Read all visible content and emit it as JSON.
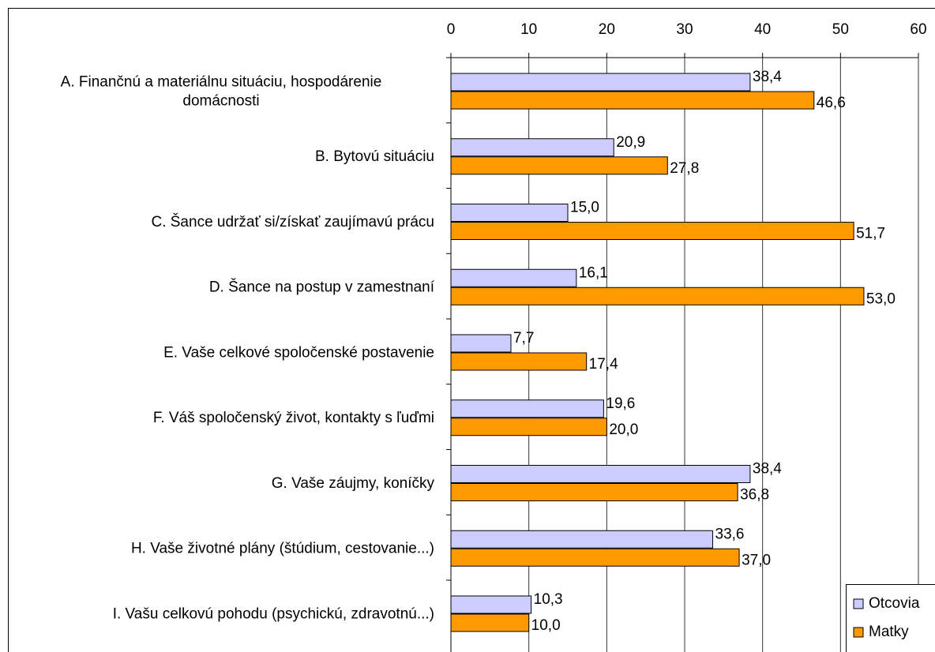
{
  "chart_data": {
    "type": "bar",
    "orientation": "horizontal",
    "categories": [
      "A. Finančnú a materiálnu situáciu, hospodárenie\ndomácnosti",
      "B. Bytovú situáciu",
      "C. Šance udržať si/získať zaujímavú prácu",
      "D. Šance na postup v zamestnaní",
      "E. Vaše celkové spoločenské postavenie",
      "F. Váš spoločenský život, kontakty s ľuďmi",
      "G. Vaše záujmy, koníčky",
      "H. Vaše životné plány (štúdium, cestovanie...)",
      "I. Vašu celkovú pohodu (psychickú, zdravotnú...)"
    ],
    "series": [
      {
        "name": "Otcovia",
        "color": "#ccccff",
        "values": [
          38.4,
          20.9,
          15.0,
          16.1,
          7.7,
          19.6,
          38.4,
          33.6,
          10.3
        ],
        "value_labels": [
          "38,4",
          "20,9",
          "15,0",
          "16,1",
          "7,7",
          "19,6",
          "38,4",
          "33,6",
          "10,3"
        ]
      },
      {
        "name": "Matky",
        "color": "#ff9900",
        "values": [
          46.6,
          27.8,
          51.7,
          53.0,
          17.4,
          20.0,
          36.8,
          37.0,
          10.0
        ],
        "value_labels": [
          "46,6",
          "27,8",
          "51,7",
          "53,0",
          "17,4",
          "20,0",
          "36,8",
          "37,0",
          "10,0"
        ]
      }
    ],
    "xlim": [
      0,
      60
    ],
    "xticks": [
      0,
      10,
      20,
      30,
      40,
      50,
      60
    ],
    "grid": true,
    "legend": "lower right"
  }
}
